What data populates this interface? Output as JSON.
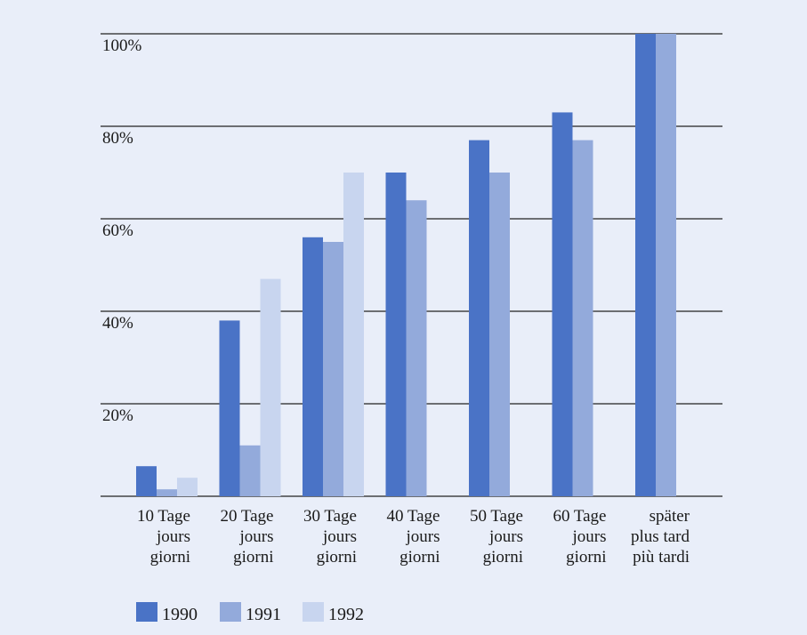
{
  "chart_data": {
    "type": "bar",
    "categories": [
      [
        "10 Tage",
        "jours",
        "giorni"
      ],
      [
        "20 Tage",
        "jours",
        "giorni"
      ],
      [
        "30 Tage",
        "jours",
        "giorni"
      ],
      [
        "40 Tage",
        "jours",
        "giorni"
      ],
      [
        "50 Tage",
        "jours",
        "giorni"
      ],
      [
        "60 Tage",
        "jours",
        "giorni"
      ],
      [
        "später",
        "plus tard",
        "più tardi"
      ]
    ],
    "series": [
      {
        "name": "1990",
        "color": "#4a73c6",
        "values": [
          6.5,
          38,
          56,
          70,
          77,
          83,
          100
        ]
      },
      {
        "name": "1991",
        "color": "#93aadb",
        "values": [
          1.5,
          11,
          55,
          64,
          70,
          77,
          100
        ]
      },
      {
        "name": "1992",
        "color": "#c8d5ef",
        "values": [
          4,
          47,
          70,
          null,
          null,
          null,
          null
        ]
      }
    ],
    "ylim": [
      0,
      100
    ],
    "yticks": [
      20,
      40,
      60,
      80,
      100
    ],
    "ytick_labels": [
      "20%",
      "40%",
      "60%",
      "80%",
      "100%"
    ],
    "grid": true,
    "legend_position": "bottom-left"
  }
}
